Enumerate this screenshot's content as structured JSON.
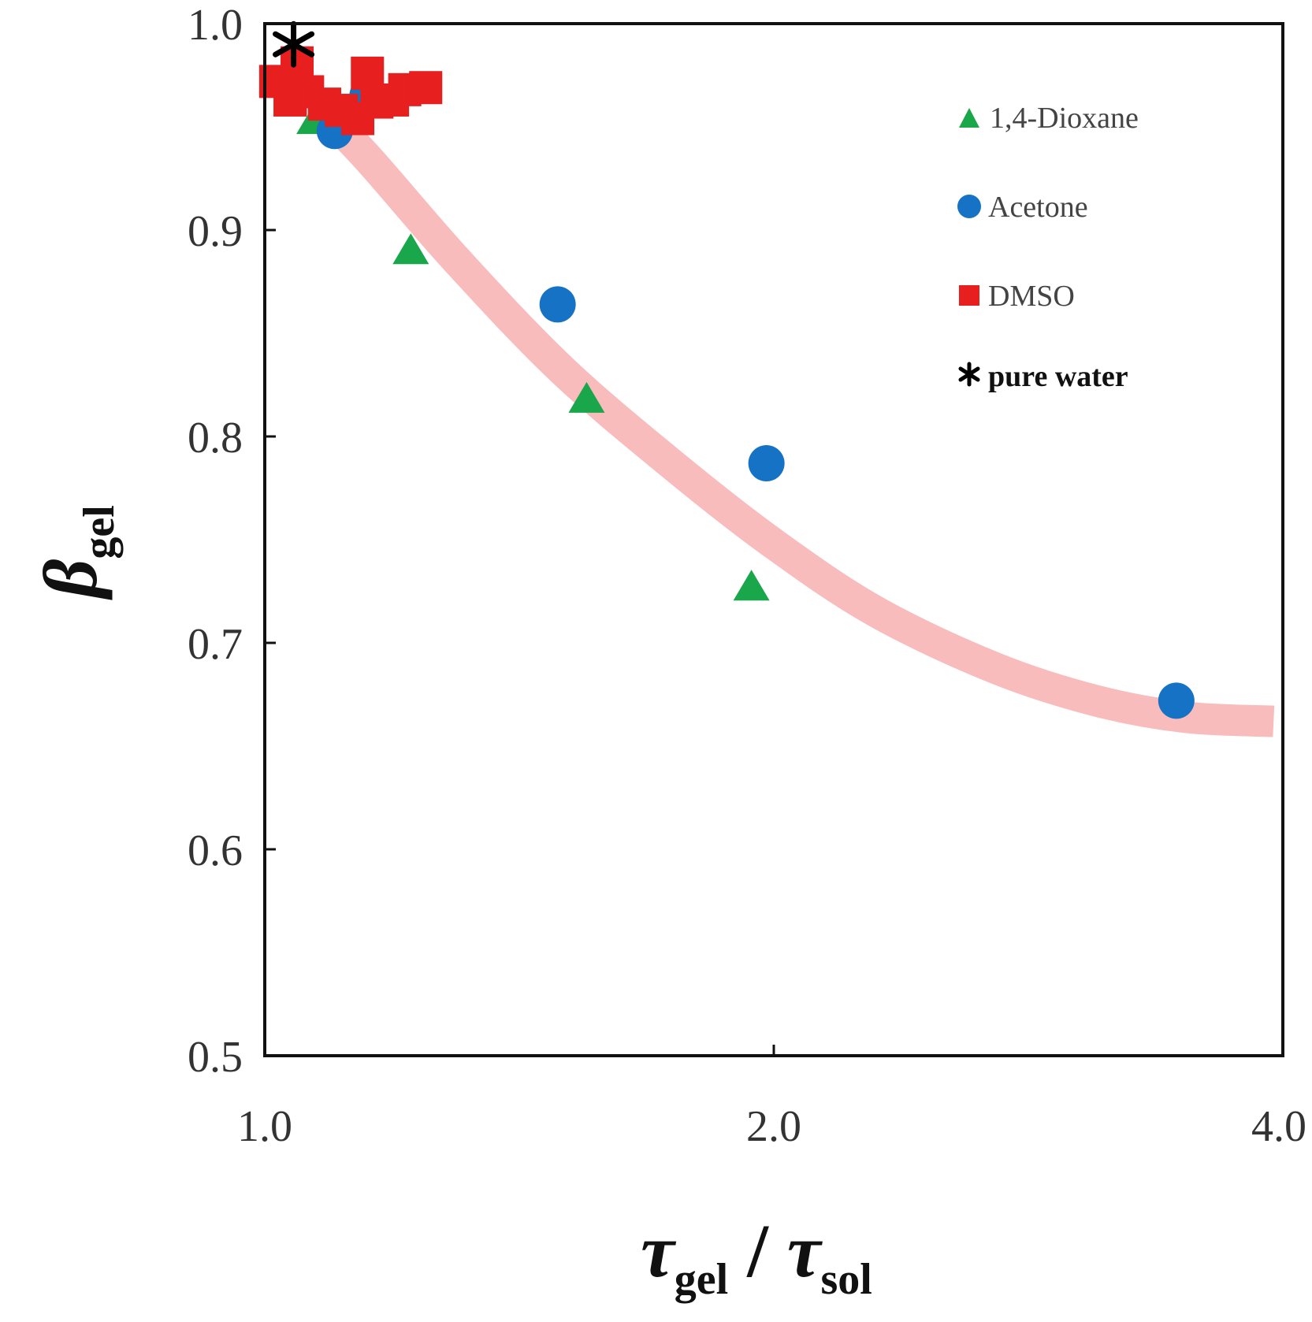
{
  "chart_data": {
    "type": "scatter",
    "title": "",
    "xlabel": {
      "main": "τ",
      "sub1": "gel",
      "sep": " / ",
      "main2": "τ",
      "sub2": "sol"
    },
    "ylabel": {
      "main": "β",
      "sub": "gel"
    },
    "xscale": "log2",
    "xlim": [
      1.0,
      4.0
    ],
    "ylim": [
      0.5,
      1.0
    ],
    "xticks": [
      {
        "value": 1.0,
        "label": "1.0"
      },
      {
        "value": 2.0,
        "label": "2.0"
      },
      {
        "value": 4.0,
        "label": "4.0"
      }
    ],
    "yticks": [
      {
        "value": 0.5,
        "label": "0.5"
      },
      {
        "value": 0.6,
        "label": "0.6"
      },
      {
        "value": 0.7,
        "label": "0.7"
      },
      {
        "value": 0.8,
        "label": "0.8"
      },
      {
        "value": 0.9,
        "label": "0.9"
      },
      {
        "value": 1.0,
        "label": "1.0"
      }
    ],
    "legend_position": "top-right",
    "series": [
      {
        "name": "1,4-Dioxane",
        "marker": "triangle",
        "color": "#1aa64b",
        "points": [
          [
            1.07,
            0.953
          ],
          [
            1.22,
            0.89
          ],
          [
            1.55,
            0.818
          ],
          [
            1.94,
            0.727
          ]
        ]
      },
      {
        "name": "Acetone",
        "marker": "circle",
        "color": "#1572c4",
        "points": [
          [
            1.1,
            0.948
          ],
          [
            1.15,
            0.965
          ],
          [
            1.49,
            0.864
          ],
          [
            1.98,
            0.787
          ],
          [
            3.46,
            0.672
          ]
        ]
      },
      {
        "name": "DMSO",
        "marker": "square",
        "color": "#e81f1f",
        "points": [
          [
            1.015,
            0.972
          ],
          [
            1.035,
            0.963
          ],
          [
            1.045,
            0.981
          ],
          [
            1.06,
            0.967
          ],
          [
            1.085,
            0.961
          ],
          [
            1.11,
            0.958
          ],
          [
            1.135,
            0.954
          ],
          [
            1.15,
            0.976
          ],
          [
            1.165,
            0.962
          ],
          [
            1.19,
            0.963
          ],
          [
            1.21,
            0.968
          ],
          [
            1.245,
            0.969
          ]
        ]
      },
      {
        "name": "pure water",
        "marker": "asterisk",
        "color": "#000000",
        "points": [
          [
            1.04,
            0.99
          ]
        ]
      }
    ],
    "fit_curve": {
      "color": "#f9bcbc",
      "points": [
        [
          1.06,
          0.965
        ],
        [
          1.15,
          0.935
        ],
        [
          1.3,
          0.885
        ],
        [
          1.5,
          0.832
        ],
        [
          1.75,
          0.785
        ],
        [
          2.0,
          0.748
        ],
        [
          2.3,
          0.715
        ],
        [
          2.7,
          0.688
        ],
        [
          3.1,
          0.672
        ],
        [
          3.5,
          0.664
        ],
        [
          3.95,
          0.662
        ]
      ]
    }
  }
}
